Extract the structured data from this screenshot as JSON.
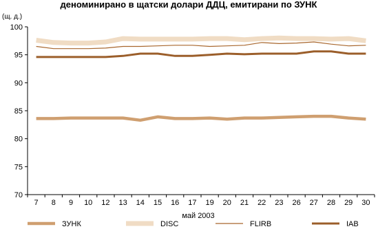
{
  "chart_data": {
    "type": "line",
    "title": "деноминирано в щатски долари ДДЦ, емитирани по ЗУНК",
    "unit_label": "(щ. д.)",
    "xlabel": "май 2003",
    "ylabel": "",
    "x": [
      "7",
      "8",
      "9",
      "10",
      "12",
      "13",
      "14",
      "15",
      "16",
      "17",
      "19",
      "20",
      "21",
      "22",
      "23",
      "26",
      "27",
      "28",
      "29",
      "30"
    ],
    "ylim": [
      70,
      100
    ],
    "yticks": [
      70,
      75,
      80,
      85,
      90,
      95,
      100
    ],
    "grid": false,
    "legend_position": "bottom",
    "series": [
      {
        "name": "ЗУНК",
        "color": "#cf9f70",
        "style": "thick",
        "values": [
          83.6,
          83.6,
          83.7,
          83.7,
          83.7,
          83.7,
          83.3,
          83.9,
          83.6,
          83.6,
          83.7,
          83.5,
          83.7,
          83.7,
          83.8,
          83.9,
          84.0,
          84.0,
          83.7,
          83.5
        ]
      },
      {
        "name": "DISC",
        "color": "#f0dcc4",
        "style": "band",
        "values": [
          97.6,
          97.2,
          97.1,
          97.1,
          97.3,
          97.9,
          97.8,
          97.8,
          97.8,
          97.8,
          97.9,
          97.9,
          97.7,
          97.9,
          98.0,
          97.9,
          97.9,
          97.8,
          97.9,
          97.5
        ]
      },
      {
        "name": "FLIRB",
        "color": "#a8662c",
        "style": "thin",
        "values": [
          96.5,
          96.1,
          96.1,
          96.1,
          96.2,
          96.5,
          96.5,
          96.6,
          96.7,
          96.7,
          96.5,
          96.6,
          96.7,
          97.2,
          97.0,
          97.1,
          97.3,
          96.9,
          96.6,
          96.7
        ]
      },
      {
        "name": "IAB",
        "color": "#9b5e2a",
        "style": "medium",
        "values": [
          94.6,
          94.6,
          94.6,
          94.6,
          94.6,
          94.8,
          95.2,
          95.2,
          94.8,
          94.8,
          95.0,
          95.2,
          95.1,
          95.2,
          95.2,
          95.2,
          95.6,
          95.6,
          95.2,
          95.2
        ]
      }
    ]
  }
}
